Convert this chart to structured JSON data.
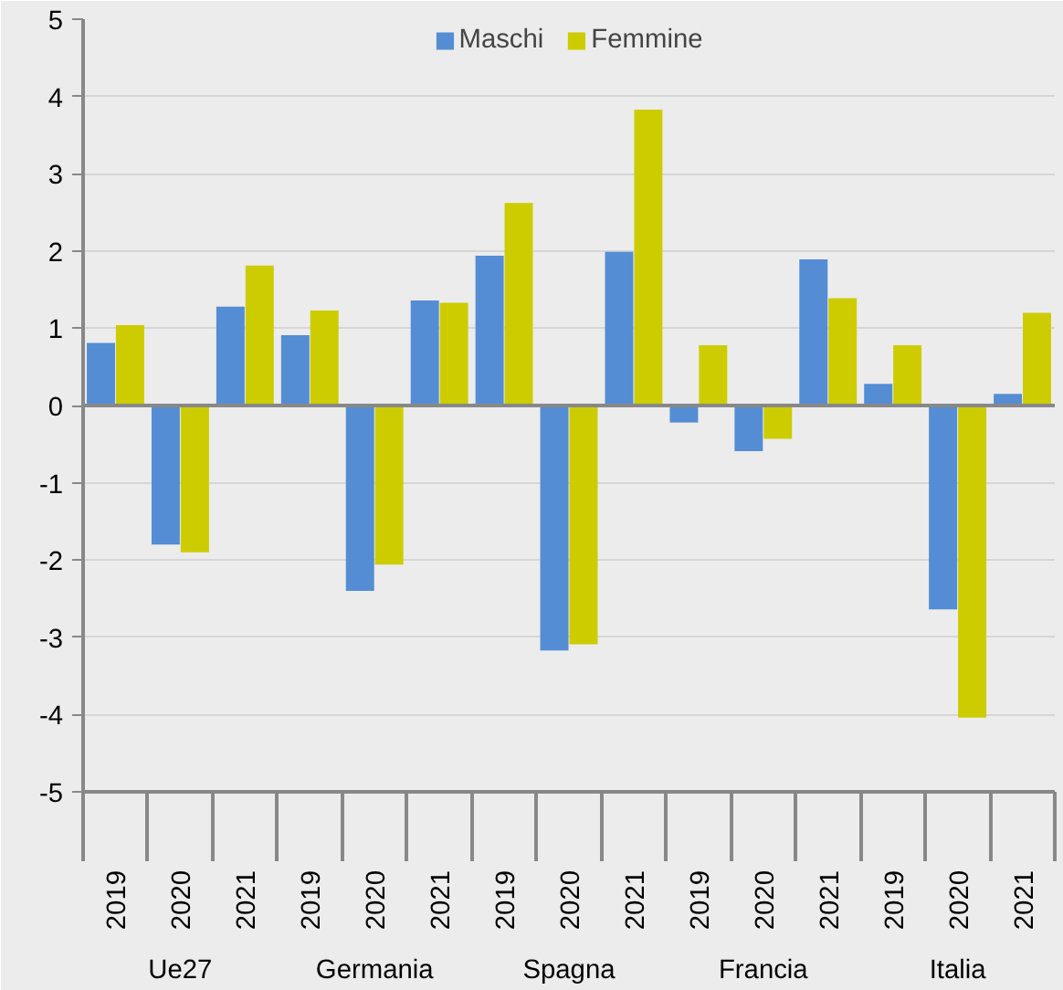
{
  "chart_data": {
    "type": "bar",
    "categories": [
      "2019",
      "2020",
      "2021",
      "2019",
      "2020",
      "2021",
      "2019",
      "2020",
      "2021",
      "2019",
      "2020",
      "2021",
      "2019",
      "2020",
      "2021"
    ],
    "annotations": [
      "Ue27",
      "Germania",
      "Spagna",
      "Francia",
      "Italia"
    ],
    "series": [
      {
        "name": "Maschi",
        "color": "#548dd4",
        "values": [
          0.81,
          -1.8,
          1.28,
          0.91,
          -2.4,
          1.36,
          1.94,
          -3.17,
          1.99,
          -0.22,
          -0.59,
          1.89,
          0.28,
          -2.64,
          0.15
        ]
      },
      {
        "name": "Femmine",
        "color": "#cccc00",
        "values": [
          1.04,
          -1.9,
          1.81,
          1.23,
          -2.06,
          1.33,
          2.62,
          -3.09,
          3.83,
          0.78,
          -0.43,
          1.39,
          0.78,
          -4.04,
          1.2
        ]
      }
    ],
    "ylim": [
      -5,
      5
    ],
    "yticks": [
      -5,
      -4,
      -3,
      -2,
      -1,
      0,
      1,
      2,
      3,
      4,
      5
    ],
    "grid": "y",
    "legend": "top"
  }
}
